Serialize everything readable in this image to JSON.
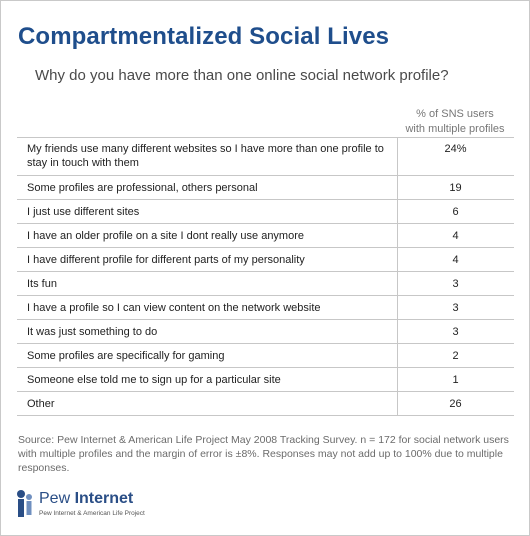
{
  "chart_data": {
    "type": "table",
    "title": "Compartmentalized Social Lives",
    "subtitle": "Why do you have more than one online social network profile?",
    "column_header": "% of SNS users with multiple profiles",
    "column_header_lines": [
      "% of SNS users",
      "with multiple profiles"
    ],
    "rows": [
      {
        "label": "My friends use many different websites so I have more than one profile to stay in touch with them",
        "value": 24,
        "display": "24%"
      },
      {
        "label": "Some profiles are professional, others personal",
        "value": 19,
        "display": "19"
      },
      {
        "label": "I just use different sites",
        "value": 6,
        "display": "6"
      },
      {
        "label": "I have an older profile on a site I dont really use anymore",
        "value": 4,
        "display": "4"
      },
      {
        "label": "I have different profile for different parts of my personality",
        "value": 4,
        "display": "4"
      },
      {
        "label": "Its fun",
        "value": 3,
        "display": "3"
      },
      {
        "label": "I have a profile so I can view content on the network website",
        "value": 3,
        "display": "3"
      },
      {
        "label": "It was just something to do",
        "value": 3,
        "display": "3"
      },
      {
        "label": "Some profiles are specifically for gaming",
        "value": 2,
        "display": "2"
      },
      {
        "label": "Someone else told me to sign up for a particular site",
        "value": 1,
        "display": "1"
      },
      {
        "label": "Other",
        "value": 26,
        "display": "26"
      }
    ],
    "source": "Source: Pew Internet & American Life Project May 2008 Tracking Survey. n = 172 for social network users with multiple profiles and the margin of error is ±8%. Responses may not add up to 100% due to multiple responses."
  },
  "logo": {
    "name_regular": "Pew ",
    "name_bold": "Internet",
    "tagline": "Pew Internet & American Life Project"
  },
  "colors": {
    "title": "#1f4e8c",
    "logo_blue": "#2a4e86",
    "rule": "#c7c7c7"
  }
}
